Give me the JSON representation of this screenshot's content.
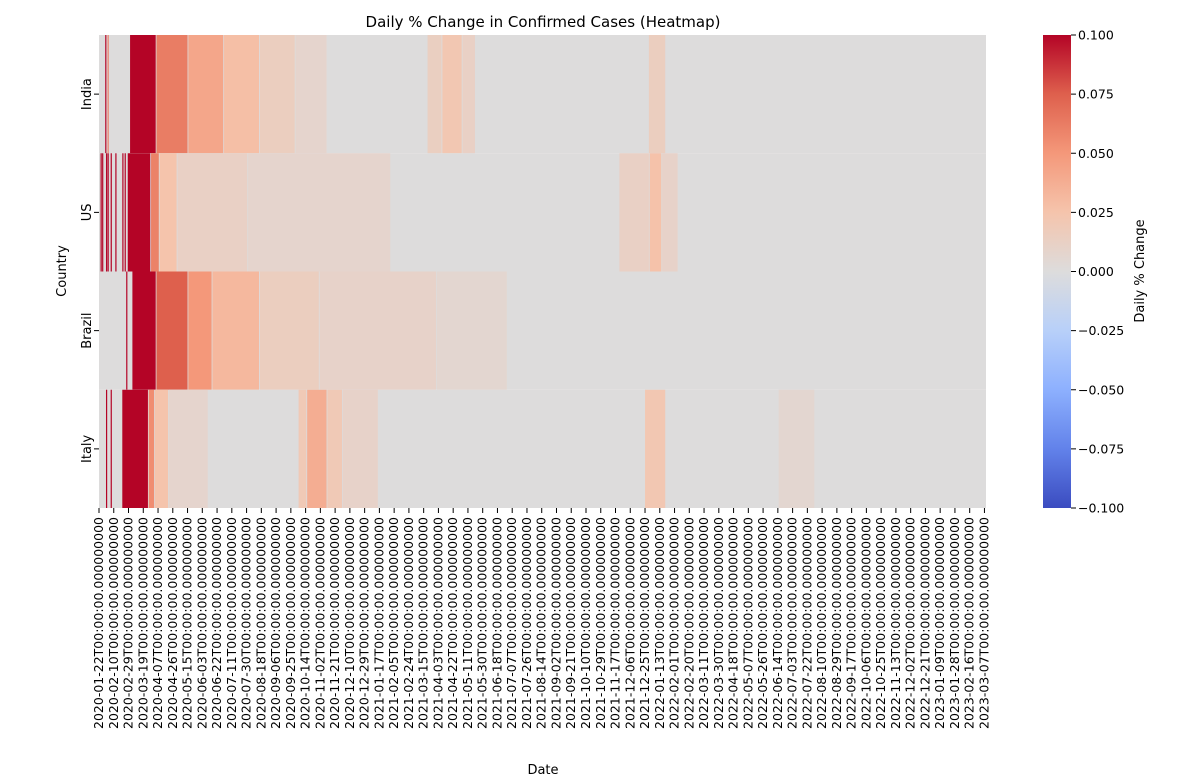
{
  "chart_data": {
    "type": "heatmap",
    "title": "Daily % Change in Confirmed Cases (Heatmap)",
    "xlabel": "Date",
    "ylabel": "Country",
    "countries": [
      "India",
      "US",
      "Brazil",
      "Italy"
    ],
    "date_start": "2020-01-22",
    "date_end": "2023-03-09",
    "date_tick_interval_days": 19,
    "date_tick_suffix": "T00:00:00.000000000",
    "colorbar": {
      "label": "Daily % Change",
      "colormap": "coolwarm",
      "vmin": -0.1,
      "vmax": 0.1,
      "ticks": [
        -0.1,
        -0.075,
        -0.05,
        -0.025,
        0.0,
        0.025,
        0.05,
        0.075,
        0.1
      ],
      "tick_labels": [
        "−0.100",
        "−0.075",
        "−0.050",
        "−0.025",
        "0.000",
        "0.025",
        "0.050",
        "0.075",
        "0.100"
      ],
      "colors": [
        "#3b4cc0",
        "#6282ea",
        "#8db0fe",
        "#b8d0f9",
        "#dddcdc",
        "#f5c4ac",
        "#f4987a",
        "#de604d",
        "#b40426"
      ]
    },
    "rows": [
      {
        "country": "India",
        "baseline": 0.0,
        "segments": [
          {
            "from": "2020-01-30",
            "to": "2020-01-31",
            "value": 0.1
          },
          {
            "from": "2020-02-02",
            "to": "2020-02-03",
            "value": 0.06
          },
          {
            "from": "2020-03-02",
            "to": "2020-04-04",
            "value": 0.1
          },
          {
            "from": "2020-04-05",
            "to": "2020-05-15",
            "value": 0.062
          },
          {
            "from": "2020-05-16",
            "to": "2020-06-30",
            "value": 0.042
          },
          {
            "from": "2020-07-01",
            "to": "2020-08-15",
            "value": 0.028
          },
          {
            "from": "2020-08-16",
            "to": "2020-09-30",
            "value": 0.015
          },
          {
            "from": "2020-10-01",
            "to": "2020-11-10",
            "value": 0.008
          },
          {
            "from": "2021-03-20",
            "to": "2021-04-07",
            "value": 0.014
          },
          {
            "from": "2021-04-08",
            "to": "2021-05-03",
            "value": 0.022
          },
          {
            "from": "2021-05-04",
            "to": "2021-05-20",
            "value": 0.012
          },
          {
            "from": "2021-12-30",
            "to": "2022-01-20",
            "value": 0.015
          }
        ]
      },
      {
        "country": "US",
        "baseline": 0.0,
        "segments": [
          {
            "from": "2020-01-24",
            "to": "2020-01-25",
            "value": 0.1
          },
          {
            "from": "2020-01-26",
            "to": "2020-01-27",
            "value": 0.1
          },
          {
            "from": "2020-01-31",
            "to": "2020-02-01",
            "value": 0.1
          },
          {
            "from": "2020-02-02",
            "to": "2020-02-03",
            "value": 0.1
          },
          {
            "from": "2020-02-06",
            "to": "2020-02-07",
            "value": 0.1
          },
          {
            "from": "2020-02-12",
            "to": "2020-02-13",
            "value": 0.1
          },
          {
            "from": "2020-02-21",
            "to": "2020-02-22",
            "value": 0.1
          },
          {
            "from": "2020-02-24",
            "to": "2020-02-25",
            "value": 0.1
          },
          {
            "from": "2020-02-28",
            "to": "2020-03-28",
            "value": 0.1
          },
          {
            "from": "2020-03-29",
            "to": "2020-04-08",
            "value": 0.06
          },
          {
            "from": "2020-04-09",
            "to": "2020-05-01",
            "value": 0.025
          },
          {
            "from": "2020-05-02",
            "to": "2020-07-31",
            "value": 0.012
          },
          {
            "from": "2020-08-01",
            "to": "2021-01-31",
            "value": 0.008
          },
          {
            "from": "2021-11-22",
            "to": "2021-12-30",
            "value": 0.012
          },
          {
            "from": "2021-12-31",
            "to": "2022-01-15",
            "value": 0.026
          },
          {
            "from": "2022-01-16",
            "to": "2022-02-05",
            "value": 0.01
          }
        ]
      },
      {
        "country": "Brazil",
        "baseline": 0.0,
        "segments": [
          {
            "from": "2020-02-26",
            "to": "2020-02-27",
            "value": 0.1
          },
          {
            "from": "2020-03-05",
            "to": "2020-04-04",
            "value": 0.1
          },
          {
            "from": "2020-04-05",
            "to": "2020-05-15",
            "value": 0.075
          },
          {
            "from": "2020-05-16",
            "to": "2020-06-15",
            "value": 0.05
          },
          {
            "from": "2020-06-16",
            "to": "2020-08-15",
            "value": 0.032
          },
          {
            "from": "2020-08-16",
            "to": "2020-10-31",
            "value": 0.015
          },
          {
            "from": "2020-11-01",
            "to": "2021-03-31",
            "value": 0.01
          },
          {
            "from": "2021-04-01",
            "to": "2021-06-30",
            "value": 0.006
          }
        ]
      },
      {
        "country": "Italy",
        "baseline": 0.0,
        "segments": [
          {
            "from": "2020-01-31",
            "to": "2020-02-01",
            "value": 0.1
          },
          {
            "from": "2020-02-06",
            "to": "2020-02-07",
            "value": 0.1
          },
          {
            "from": "2020-02-21",
            "to": "2020-03-25",
            "value": 0.1
          },
          {
            "from": "2020-03-26",
            "to": "2020-04-02",
            "value": 0.055
          },
          {
            "from": "2020-04-03",
            "to": "2020-04-20",
            "value": 0.025
          },
          {
            "from": "2020-04-21",
            "to": "2020-06-10",
            "value": 0.008
          },
          {
            "from": "2020-10-05",
            "to": "2020-10-15",
            "value": 0.02
          },
          {
            "from": "2020-10-16",
            "to": "2020-11-10",
            "value": 0.038
          },
          {
            "from": "2020-11-11",
            "to": "2020-11-30",
            "value": 0.02
          },
          {
            "from": "2020-12-01",
            "to": "2021-01-15",
            "value": 0.01
          },
          {
            "from": "2021-12-25",
            "to": "2022-01-20",
            "value": 0.022
          },
          {
            "from": "2022-06-15",
            "to": "2022-07-31",
            "value": 0.006
          }
        ]
      }
    ]
  }
}
